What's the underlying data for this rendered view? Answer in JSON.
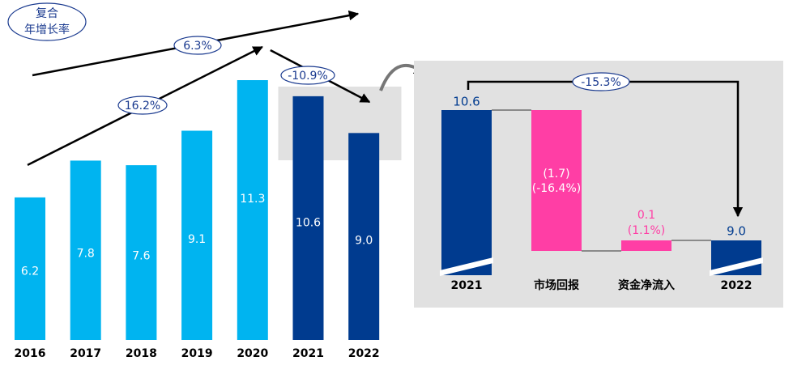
{
  "legend_label": {
    "line1": "复合",
    "line2": "年增长率"
  },
  "colors": {
    "light_blue": "#00b4f0",
    "dark_blue": "#003b8f",
    "pink": "#ff3ea5",
    "gray_panel": "#e1e1e1",
    "arrow": "#000000",
    "badge_text": "#1a3a8f",
    "axis_text": "#000000"
  },
  "chart_data": [
    {
      "type": "bar",
      "categories": [
        "2016",
        "2017",
        "2018",
        "2019",
        "2020",
        "2021",
        "2022"
      ],
      "values": [
        6.2,
        7.8,
        7.6,
        9.1,
        11.3,
        10.6,
        9.0
      ],
      "value_labels": [
        "6.2",
        "7.8",
        "7.6",
        "9.1",
        "11.3",
        "10.6",
        "9.0"
      ],
      "highlighted_categories": [
        "2021",
        "2022"
      ],
      "ylim": [
        0,
        11.3
      ],
      "growth_annotations": [
        {
          "label": "16.2%",
          "from": "2016",
          "to": "2020"
        },
        {
          "label": "6.3%",
          "from": "2016",
          "to": "2022"
        },
        {
          "label": "-10.9%",
          "from": "2020",
          "to": "2022"
        }
      ]
    },
    {
      "type": "bar",
      "categories": [
        "2021",
        "市场回报",
        "资金净流入",
        "2022"
      ],
      "values": [
        10.6,
        -1.7,
        0.1,
        9.0
      ],
      "value_labels": [
        "10.6",
        "(1.7)",
        "0.1",
        "9.0"
      ],
      "sub_labels": [
        "",
        "(-16.4%)",
        "(1.1%)",
        ""
      ],
      "bar_roles": [
        "total",
        "delta",
        "delta",
        "total"
      ],
      "overall_change": "-15.3%"
    }
  ]
}
